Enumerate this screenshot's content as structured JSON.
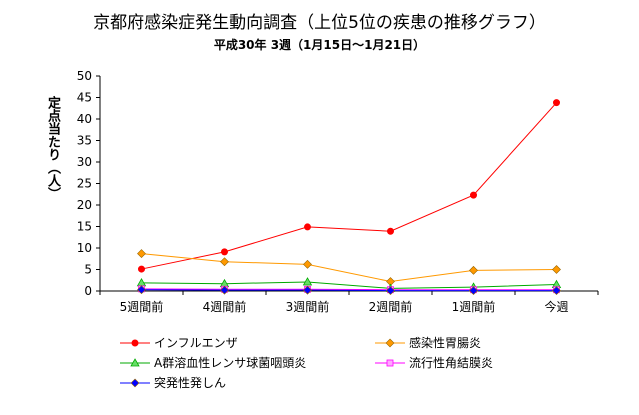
{
  "chart_data": {
    "type": "line",
    "title": "京都府感染症発生動向調査（上位5位の疾患の推移グラフ）",
    "subtitle": "平成30年 3週（1月15日～1月21日）",
    "xlabel": "",
    "ylabel": "定点当たり（人）",
    "categories": [
      "5週間前",
      "4週間前",
      "3週間前",
      "2週間前",
      "1週間前",
      "今週"
    ],
    "ylim": [
      0,
      50
    ],
    "yticks": [
      0,
      5,
      10,
      15,
      20,
      25,
      30,
      35,
      40,
      45,
      50
    ],
    "grid": false,
    "legend_position": "bottom",
    "series": [
      {
        "name": "インフルエンザ",
        "color": "#ff0000",
        "marker": "circle",
        "values": [
          5.1,
          9.1,
          14.9,
          13.9,
          22.3,
          43.8
        ]
      },
      {
        "name": "感染性胃腸炎",
        "color": "#ff9900",
        "marker": "diamond",
        "values": [
          8.7,
          6.8,
          6.2,
          2.2,
          4.8,
          5.0
        ]
      },
      {
        "name": "A群溶血性レンサ球菌咽頭炎",
        "color": "#00aa00",
        "marker": "triangle",
        "values": [
          1.9,
          1.7,
          2.1,
          0.6,
          0.9,
          1.5
        ]
      },
      {
        "name": "流行性角結膜炎",
        "color": "#ff00ff",
        "marker": "square",
        "values": [
          0.5,
          0.4,
          0.4,
          0.3,
          0.3,
          0.3
        ]
      },
      {
        "name": "突発性発しん",
        "color": "#0000ff",
        "marker": "diamond",
        "values": [
          0.3,
          0.2,
          0.2,
          0.1,
          0.1,
          0.1
        ]
      }
    ]
  }
}
